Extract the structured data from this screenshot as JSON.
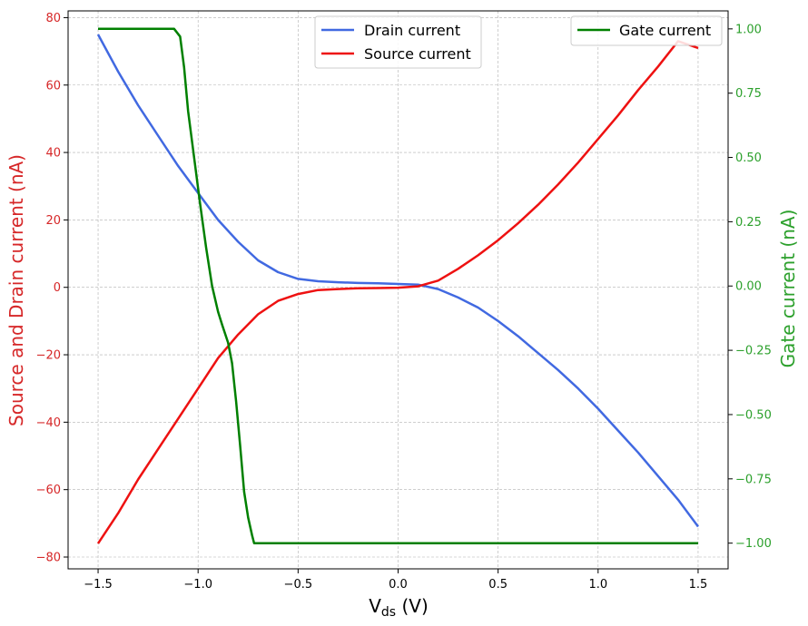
{
  "chart_data": {
    "type": "line",
    "xlabel": "V",
    "xlabel_sub": "ds",
    "xlabel_unit": " (V)",
    "ylabel_left": "Source and Drain current (nA)",
    "ylabel_right": "Gate current (nA)",
    "xlim": [
      -1.65,
      1.65
    ],
    "ylim_left": [
      -83.5,
      82
    ],
    "ylim_right": [
      -1.1,
      1.07
    ],
    "xticks": [
      -1.5,
      -1.0,
      -0.5,
      0.0,
      0.5,
      1.0,
      1.5
    ],
    "xtick_labels": [
      "−1.5",
      "−1.0",
      "−0.5",
      "0.0",
      "0.5",
      "1.0",
      "1.5"
    ],
    "yticks_left": [
      -80,
      -60,
      -40,
      -20,
      0,
      20,
      40,
      60,
      80
    ],
    "ytick_labels_left": [
      "−80",
      "−60",
      "−40",
      "−20",
      "0",
      "20",
      "40",
      "60",
      "80"
    ],
    "yticks_right": [
      -1.0,
      -0.75,
      -0.5,
      -0.25,
      0.0,
      0.25,
      0.5,
      0.75,
      1.0
    ],
    "ytick_labels_right": [
      "−1.00",
      "−0.75",
      "−0.50",
      "−0.25",
      "0.00",
      "0.25",
      "0.50",
      "0.75",
      "1.00"
    ],
    "grid": true,
    "colors": {
      "left_axis": "#d62728",
      "right_axis": "#2ca02c",
      "drain": "#4169e1",
      "source": "#ee1111",
      "gate": "#008000"
    },
    "legend_left": {
      "position": "top-center",
      "entries": [
        "Drain current",
        "Source current"
      ]
    },
    "legend_right": {
      "position": "top-right",
      "entries": [
        "Gate current"
      ]
    },
    "series": [
      {
        "name": "Drain current",
        "axis": "left",
        "x": [
          -1.5,
          -1.4,
          -1.3,
          -1.2,
          -1.1,
          -1.0,
          -0.9,
          -0.8,
          -0.7,
          -0.6,
          -0.5,
          -0.4,
          -0.3,
          -0.2,
          -0.1,
          0.0,
          0.1,
          0.2,
          0.3,
          0.4,
          0.5,
          0.6,
          0.7,
          0.8,
          0.9,
          1.0,
          1.1,
          1.2,
          1.3,
          1.4,
          1.5
        ],
        "y": [
          75,
          64,
          54,
          45,
          36,
          28,
          20,
          13.5,
          8,
          4.5,
          2.5,
          1.8,
          1.5,
          1.3,
          1.2,
          1.0,
          0.8,
          -0.5,
          -3,
          -6,
          -10,
          -14.5,
          -19.5,
          -24.5,
          -30,
          -36,
          -42.5,
          -49,
          -56,
          -63,
          -71
        ]
      },
      {
        "name": "Source current",
        "axis": "left",
        "x": [
          -1.5,
          -1.4,
          -1.3,
          -1.2,
          -1.1,
          -1.0,
          -0.9,
          -0.8,
          -0.7,
          -0.6,
          -0.5,
          -0.4,
          -0.3,
          -0.2,
          -0.1,
          0.0,
          0.1,
          0.2,
          0.3,
          0.4,
          0.5,
          0.6,
          0.7,
          0.8,
          0.9,
          1.0,
          1.1,
          1.2,
          1.3,
          1.4,
          1.5
        ],
        "y": [
          -76,
          -67,
          -57,
          -48,
          -39,
          -30,
          -21,
          -14,
          -8,
          -4,
          -2,
          -0.8,
          -0.5,
          -0.3,
          -0.2,
          -0.1,
          0.3,
          2,
          5.5,
          9.5,
          14,
          19,
          24.5,
          30.5,
          37,
          44,
          51,
          58.5,
          65.5,
          73,
          71
        ]
      },
      {
        "name": "Gate current",
        "axis": "right",
        "x": [
          -1.5,
          -1.12,
          -1.09,
          -1.07,
          -1.05,
          -1.02,
          -0.99,
          -0.96,
          -0.93,
          -0.9,
          -0.88,
          -0.85,
          -0.83,
          -0.81,
          -0.79,
          -0.77,
          -0.75,
          -0.73,
          -0.72,
          -0.5,
          0.0,
          0.5,
          1.0,
          1.5
        ],
        "y": [
          1.0,
          1.0,
          0.97,
          0.85,
          0.68,
          0.5,
          0.32,
          0.15,
          0.0,
          -0.1,
          -0.15,
          -0.22,
          -0.3,
          -0.45,
          -0.62,
          -0.8,
          -0.9,
          -0.97,
          -1.0,
          -1.0,
          -1.0,
          -1.0,
          -1.0,
          -1.0
        ]
      }
    ]
  }
}
